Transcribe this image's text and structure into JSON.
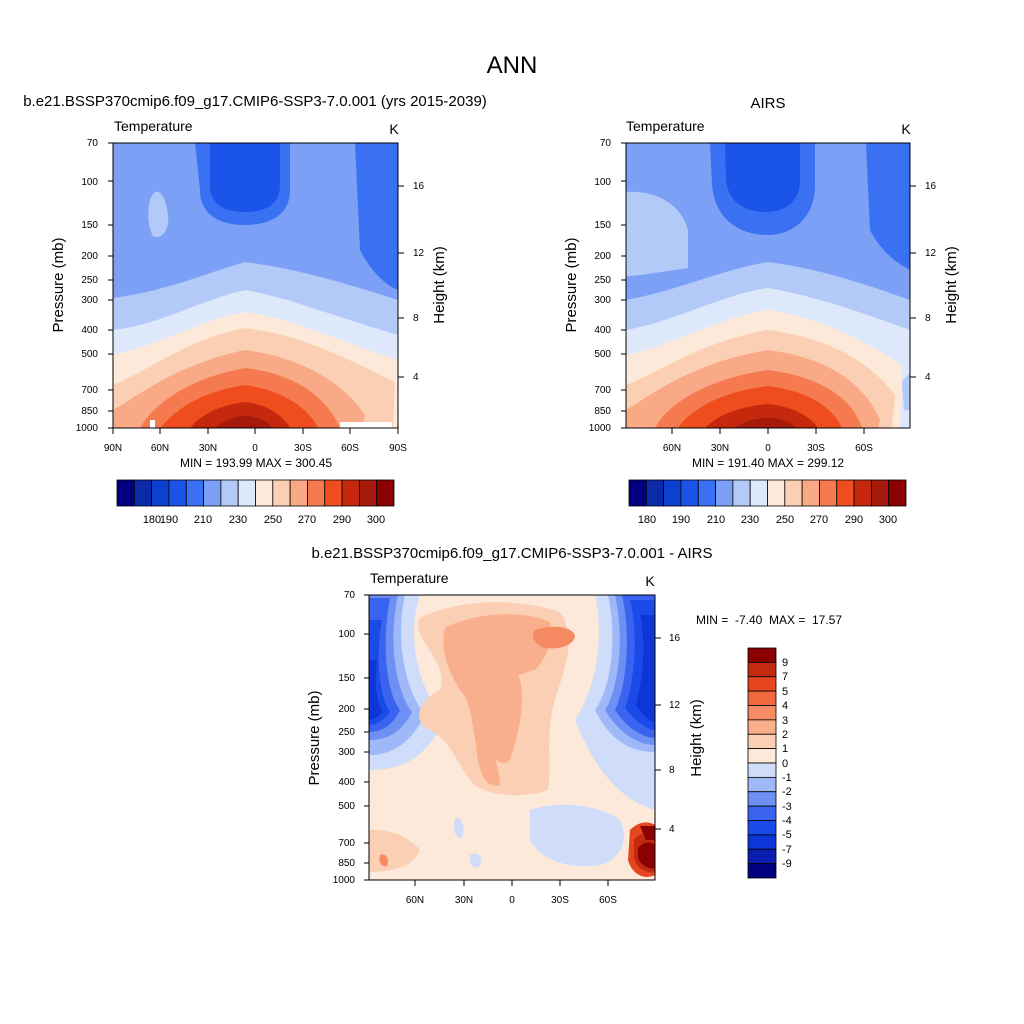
{
  "page_title": "ANN",
  "colors": {
    "abs_scale": [
      "#000080",
      "#0a2aa8",
      "#0d3fd0",
      "#1a54e8",
      "#3a70f2",
      "#7ba0f5",
      "#b3c9f8",
      "#dde9fb",
      "#fde9d9",
      "#fbcfb3",
      "#f9a985",
      "#f57a50",
      "#f04d1e",
      "#c6280d",
      "#a51a0a",
      "#8b0000"
    ],
    "diff_scale": [
      "#000080",
      "#0a1fb2",
      "#0d35d7",
      "#1a4ae8",
      "#3a64f0",
      "#6e90f4",
      "#9fb8f7",
      "#cfddfa",
      "#fde9d9",
      "#fbcfb3",
      "#f9ae8c",
      "#f58a63",
      "#f16a3f",
      "#e5461f",
      "#c32a10",
      "#8b0000"
    ]
  },
  "chart_data": [
    {
      "id": "model",
      "type": "contour",
      "title": "b.e21.BSSP370cmip6.f09_g17.CMIP6-SSP3-7.0.001 (yrs 2015-2039)",
      "variable": "Temperature",
      "units": "K",
      "ylabel": "Pressure (mb)",
      "ylabel_right": "Height (km)",
      "y_ticks": [
        "70",
        "100",
        "150",
        "200",
        "250",
        "300",
        "400",
        "500",
        "700",
        "850",
        "1000"
      ],
      "y_ticks_right": [
        "16",
        "12",
        "8",
        "4"
      ],
      "x_ticks": [
        "90N",
        "60N",
        "30N",
        "0",
        "30S",
        "60S",
        "90S"
      ],
      "min": 193.99,
      "max": 300.45,
      "min_max_text": "MIN = 193.99  MAX = 300.45",
      "colorbar_labels": [
        "180",
        "190",
        "210",
        "230",
        "250",
        "270",
        "290",
        "300"
      ]
    },
    {
      "id": "obs",
      "type": "contour",
      "title": "AIRS",
      "variable": "Temperature",
      "units": "K",
      "ylabel": "Pressure (mb)",
      "ylabel_right": "Height (km)",
      "y_ticks": [
        "70",
        "100",
        "150",
        "200",
        "250",
        "300",
        "400",
        "500",
        "700",
        "850",
        "1000"
      ],
      "y_ticks_right": [
        "16",
        "12",
        "8",
        "4"
      ],
      "x_ticks": [
        "60N",
        "30N",
        "0",
        "30S",
        "60S"
      ],
      "min": 191.4,
      "max": 299.12,
      "min_max_text": "MIN = 191.40  MAX = 299.12",
      "colorbar_labels": [
        "180",
        "190",
        "210",
        "230",
        "250",
        "270",
        "290",
        "300"
      ]
    },
    {
      "id": "diff",
      "type": "contour",
      "title": "b.e21.BSSP370cmip6.f09_g17.CMIP6-SSP3-7.0.001 - AIRS",
      "variable": "Temperature",
      "units": "K",
      "ylabel": "Pressure (mb)",
      "ylabel_right": "Height (km)",
      "y_ticks": [
        "70",
        "100",
        "150",
        "200",
        "250",
        "300",
        "400",
        "500",
        "700",
        "850",
        "1000"
      ],
      "y_ticks_right": [
        "16",
        "12",
        "8",
        "4"
      ],
      "x_ticks": [
        "60N",
        "30N",
        "0",
        "30S",
        "60S"
      ],
      "min": -7.4,
      "max": 17.57,
      "min_max_text": "MIN =  -7.40  MAX =  17.57",
      "colorbar_labels": [
        "9",
        "7",
        "5",
        "4",
        "3",
        "2",
        "1",
        "0",
        "-1",
        "-2",
        "-3",
        "-4",
        "-5",
        "-7",
        "-9"
      ]
    }
  ]
}
